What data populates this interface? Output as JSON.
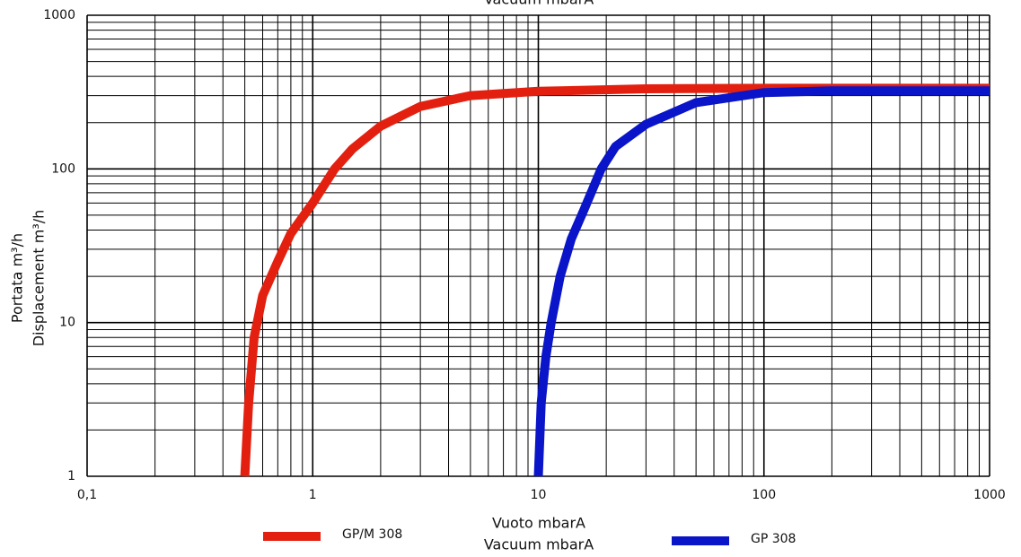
{
  "chart_data": {
    "type": "line",
    "top_label": "Vacuum mbarA",
    "ylabel": [
      "Portata m³/h",
      "Displacement m³/h"
    ],
    "xlabel": [
      "Vuoto mbarA",
      "Vacuum mbarA"
    ],
    "log_x": true,
    "log_y": true,
    "grid": true,
    "xlim": [
      0.1,
      1000
    ],
    "ylim": [
      1,
      1000
    ],
    "xticks": [
      {
        "value": 0.1,
        "label": "0,1"
      },
      1,
      10,
      100,
      1000
    ],
    "yticks": [
      1,
      10,
      100,
      1000
    ],
    "xminorticks": [
      0.2,
      0.3,
      0.4,
      0.5,
      0.6,
      0.7,
      0.8,
      0.9,
      2,
      3,
      4,
      5,
      6,
      7,
      8,
      9,
      20,
      30,
      40,
      50,
      60,
      70,
      80,
      90,
      200,
      300,
      400,
      500,
      600,
      700,
      800,
      900
    ],
    "yminorticks": [
      2,
      3,
      4,
      5,
      6,
      7,
      8,
      9,
      20,
      30,
      40,
      50,
      60,
      70,
      80,
      90,
      200,
      300,
      400,
      500,
      600,
      700,
      800,
      900
    ],
    "series": [
      {
        "name": "GP/M 308",
        "color": "#e3200f",
        "x": [
          0.5,
          0.52,
          0.55,
          0.6,
          0.7,
          0.8,
          1,
          1.25,
          1.5,
          2,
          3,
          5,
          10,
          30,
          100,
          1000
        ],
        "values": [
          1,
          3,
          8,
          15,
          25,
          38,
          60,
          100,
          135,
          190,
          255,
          300,
          320,
          332,
          335,
          335
        ]
      },
      {
        "name": "GP 308",
        "color": "#0a14c8",
        "x": [
          10,
          10.3,
          10.8,
          11.4,
          12.5,
          14,
          16,
          19,
          22,
          30,
          50,
          100,
          200,
          1000
        ],
        "values": [
          1,
          3,
          6,
          10,
          20,
          35,
          55,
          100,
          140,
          195,
          270,
          314,
          322,
          322
        ]
      }
    ]
  }
}
